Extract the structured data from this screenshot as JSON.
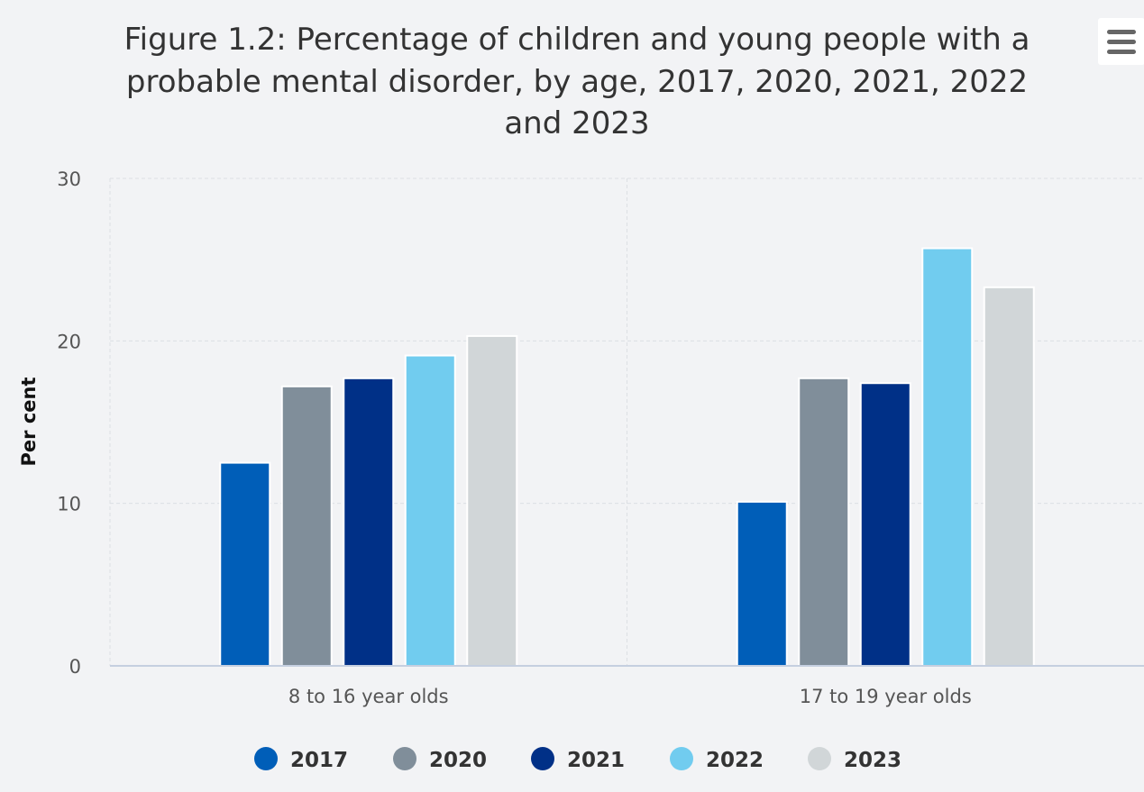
{
  "chart_data": {
    "type": "bar",
    "title": "Figure 1.2: Percentage of children and young people with a probable mental disorder, by age, 2017, 2020, 2021, 2022 and 2023",
    "title_lines": [
      "Figure 1.2: Percentage of children and young people with a",
      "probable mental disorder, by age, 2017, 2020, 2021, 2022",
      "and 2023"
    ],
    "xlabel": "",
    "ylabel": "Per cent",
    "ylim": [
      0,
      30
    ],
    "yticks": [
      0,
      10,
      20,
      30
    ],
    "categories": [
      "8 to 16 year olds",
      "17 to 19 year olds"
    ],
    "series": [
      {
        "name": "2017",
        "color": "#005eb8",
        "values": [
          12.5,
          10.1
        ]
      },
      {
        "name": "2020",
        "color": "#808e9a",
        "values": [
          17.2,
          17.7
        ]
      },
      {
        "name": "2021",
        "color": "#003087",
        "values": [
          17.7,
          17.4
        ]
      },
      {
        "name": "2022",
        "color": "#71ccef",
        "values": [
          19.1,
          25.7
        ]
      },
      {
        "name": "2023",
        "color": "#d1d6d8",
        "values": [
          20.3,
          23.3
        ]
      }
    ],
    "grid": true,
    "legend_position": "bottom"
  },
  "menu": {
    "icon": "hamburger-menu-icon"
  }
}
